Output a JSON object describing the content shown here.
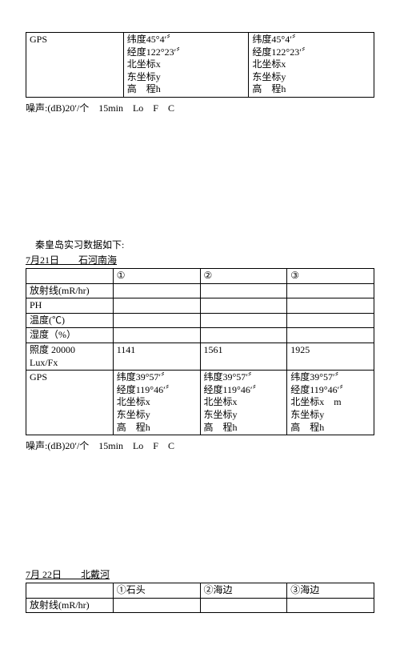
{
  "table1": {
    "row_label": "GPS",
    "cellA": "纬度45°4′〞\n经度122°23′〞\n北坐标x\n东坐标y\n高　程h",
    "cellB": "纬度45°4′〞\n经度122°23′〞\n北坐标x\n东坐标y\n高　程h"
  },
  "noise1": "噪声:(dB)20′/个　15min　Lo　F　C",
  "section1_intro": "　秦皇岛实习数据如下:",
  "section1_title": "7月21日　　石河南海",
  "table2": {
    "head": [
      "",
      "①",
      "②",
      "③"
    ],
    "rows": [
      [
        "放射线(mR/hr)",
        "",
        "",
        ""
      ],
      [
        "PH",
        "",
        "",
        ""
      ],
      [
        "温度(℃)",
        "",
        "",
        ""
      ],
      [
        "湿度（%）",
        "",
        "",
        ""
      ]
    ],
    "lux_row": [
      "照度 20000\nLux/Fx",
      "1141",
      "1561",
      "1925"
    ],
    "gps_row_label": "GPS",
    "gps_cells": [
      "纬度39°57′〞\n经度119°46′〞\n北坐标x\n东坐标y\n高　程h",
      "纬度39°57′〞\n经度119°46′〞\n北坐标x\n东坐标y\n高　程h",
      "纬度39°57′〞\n经度119°46′〞\n北坐标x　m\n东坐标y\n高　程h"
    ]
  },
  "noise2": "噪声:(dB)20′/个　15min　Lo　F　C",
  "section2_title": "7月 22日　　北戴河",
  "table3": {
    "head": [
      "",
      "①石头",
      "②海边",
      "③海边"
    ],
    "rows": [
      [
        "放射线(mR/hr)",
        "",
        "",
        ""
      ]
    ]
  }
}
